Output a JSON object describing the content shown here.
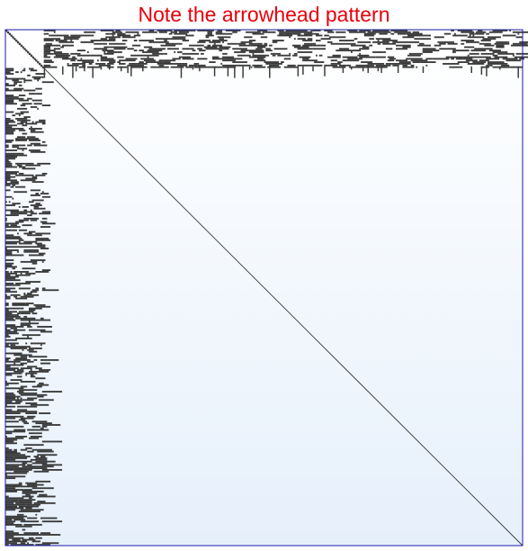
{
  "title": "Note the arrowhead pattern",
  "colors": {
    "title": "#e8000b",
    "frame": "#1a1aa8",
    "background_top": "#ffffff",
    "background_bottom": "#e6f0fb",
    "nonzero": "#3a3a3a"
  },
  "chart_data": {
    "type": "heatmap",
    "description_kind": "sparsity-pattern",
    "matrix_order": 310,
    "pattern": "arrowhead",
    "dense_block": {
      "first_index": 0,
      "size": 23
    },
    "diagonal": "full",
    "grid": false,
    "axes": false
  }
}
